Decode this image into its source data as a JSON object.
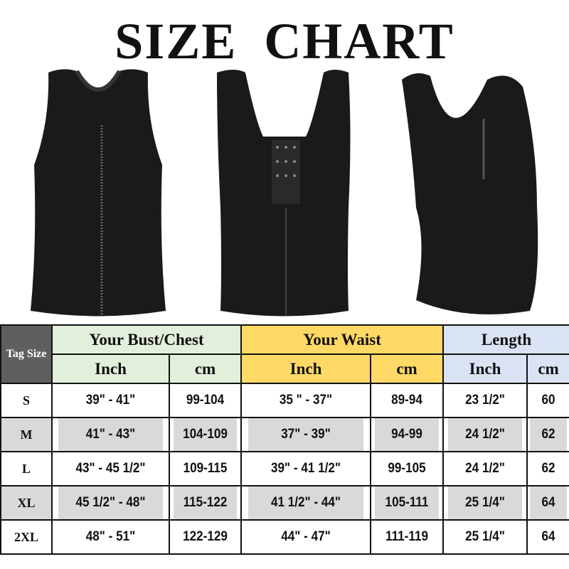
{
  "title": "SIZE CHART",
  "table": {
    "tag_size_label": "Tag Size",
    "groups": [
      {
        "label": "Your Bust/Chest",
        "color": "#e2efda"
      },
      {
        "label": "Your Waist",
        "color": "#ffd966"
      },
      {
        "label": "Length",
        "color": "#dae3f3"
      }
    ],
    "units": [
      "Inch",
      "cm",
      "Inch",
      "cm",
      "Inch",
      "cm"
    ],
    "rows": [
      {
        "size": "S",
        "values": [
          "39\" - 41\"",
          "99-104",
          "35 \" - 37\"",
          "89-94",
          "23 1/2\"",
          "60"
        ]
      },
      {
        "size": "M",
        "values": [
          "41\" - 43\"",
          "104-109",
          "37\" - 39\"",
          "94-99",
          "24 1/2\"",
          "62"
        ]
      },
      {
        "size": "L",
        "values": [
          "43\" - 45 1/2\"",
          "109-115",
          "39\" - 41 1/2\"",
          "99-105",
          "24 1/2\"",
          "62"
        ]
      },
      {
        "size": "XL",
        "values": [
          "45 1/2\" - 48\"",
          "115-122",
          "41 1/2\" - 44\"",
          "105-111",
          "25 1/4\"",
          "64"
        ]
      },
      {
        "size": "2XL",
        "values": [
          "48\" - 51\"",
          "122-129",
          "44\" - 47\"",
          "111-119",
          "25 1/4\"",
          "64"
        ]
      }
    ]
  }
}
